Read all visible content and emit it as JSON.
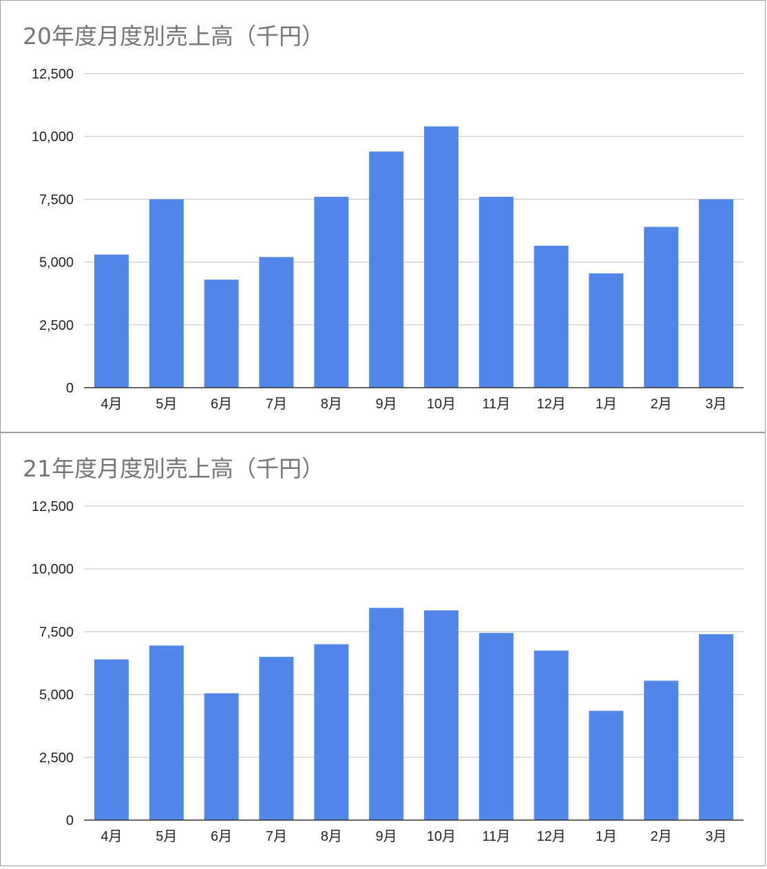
{
  "colors": {
    "bar": "#5087e8",
    "grid": "#cccccc",
    "title": "#757575",
    "axis": "#333333"
  },
  "chart_data": [
    {
      "type": "bar",
      "title": "20年度月度別売上高（千円）",
      "xlabel": "",
      "ylabel": "",
      "categories": [
        "4月",
        "5月",
        "6月",
        "7月",
        "8月",
        "9月",
        "10月",
        "11月",
        "12月",
        "1月",
        "2月",
        "3月"
      ],
      "values": [
        5300,
        7500,
        4300,
        5200,
        7600,
        9400,
        10400,
        7600,
        5650,
        4550,
        6400,
        7500
      ],
      "yticks": [
        "0",
        "2,500",
        "5,000",
        "7,500",
        "10,000",
        "12,500"
      ],
      "ylim": [
        0,
        12500
      ],
      "grid": true
    },
    {
      "type": "bar",
      "title": "21年度月度別売上高（千円）",
      "xlabel": "",
      "ylabel": "",
      "categories": [
        "4月",
        "5月",
        "6月",
        "7月",
        "8月",
        "9月",
        "10月",
        "11月",
        "12月",
        "1月",
        "2月",
        "3月"
      ],
      "values": [
        6400,
        6950,
        5050,
        6500,
        7000,
        8450,
        8350,
        7450,
        6750,
        4350,
        5550,
        7400
      ],
      "yticks": [
        "0",
        "2,500",
        "5,000",
        "7,500",
        "10,000",
        "12,500"
      ],
      "ylim": [
        0,
        12500
      ],
      "grid": true
    }
  ]
}
